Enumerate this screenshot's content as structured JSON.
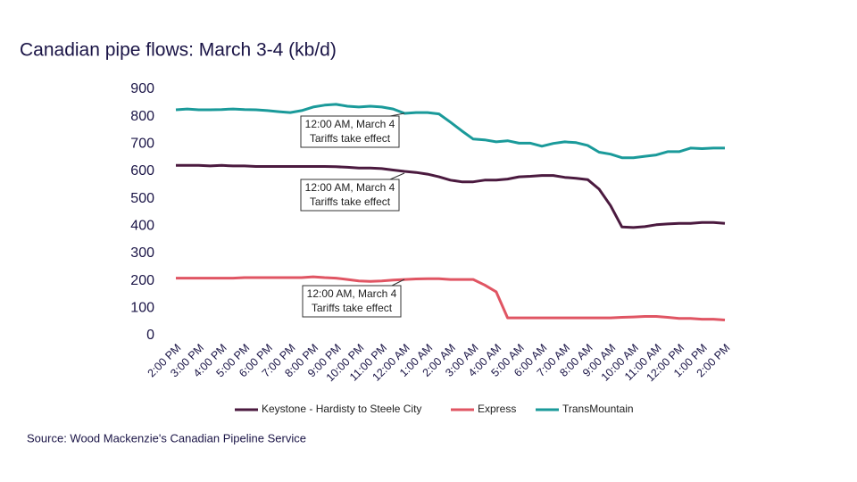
{
  "chart_data": {
    "type": "line",
    "title": "Canadian pipe flows: March 3-4 (kb/d)",
    "source": "Source: Wood Mackenzie's Canadian Pipeline Service",
    "categories": [
      "2:00 PM",
      null,
      "3:00 PM",
      null,
      "4:00 PM",
      null,
      "5:00 PM",
      null,
      "6:00 PM",
      null,
      "7:00 PM",
      null,
      "8:00 PM",
      null,
      "9:00 PM",
      null,
      "10:00 PM",
      null,
      "11:00 PM",
      null,
      "12:00 AM",
      null,
      "1:00 AM",
      null,
      "2:00 AM",
      null,
      "3:00 AM",
      null,
      "4:00 AM",
      null,
      "5:00 AM",
      null,
      "6:00 AM",
      null,
      "7:00 AM",
      null,
      "8:00 AM",
      null,
      "9:00 AM",
      null,
      "10:00 AM",
      null,
      "11:00 AM",
      null,
      "12:00 PM",
      null,
      "1:00 PM",
      null,
      "2:00 PM"
    ],
    "series": [
      {
        "name": "Keystone - Hardisty to Steele City",
        "color": "#4b1a3f",
        "values": [
          622,
          622,
          622,
          620,
          622,
          620,
          620,
          618,
          618,
          618,
          618,
          618,
          618,
          618,
          617,
          615,
          612,
          612,
          610,
          605,
          600,
          596,
          590,
          580,
          568,
          562,
          562,
          568,
          568,
          572,
          580,
          582,
          585,
          585,
          578,
          575,
          570,
          535,
          475,
          397,
          395,
          398,
          405,
          408,
          410,
          410,
          413,
          413,
          410
        ]
      },
      {
        "name": "Express",
        "color": "#e05563",
        "values": [
          210,
          210,
          210,
          210,
          210,
          210,
          212,
          212,
          212,
          212,
          212,
          212,
          215,
          212,
          210,
          205,
          200,
          198,
          200,
          203,
          205,
          207,
          208,
          208,
          205,
          205,
          205,
          185,
          160,
          65,
          65,
          65,
          65,
          65,
          65,
          65,
          65,
          65,
          65,
          67,
          68,
          70,
          70,
          67,
          63,
          63,
          60,
          60,
          57
        ]
      },
      {
        "name": "TransMountain",
        "color": "#1a9a9a",
        "values": [
          825,
          828,
          825,
          825,
          826,
          828,
          826,
          825,
          822,
          818,
          815,
          822,
          835,
          842,
          845,
          838,
          835,
          838,
          835,
          828,
          812,
          815,
          815,
          810,
          780,
          748,
          718,
          715,
          708,
          712,
          703,
          703,
          692,
          702,
          708,
          705,
          695,
          670,
          663,
          650,
          650,
          655,
          660,
          672,
          672,
          685,
          683,
          685,
          685
        ]
      }
    ],
    "annotations": [
      {
        "lines": [
          "12:00 AM, March 4",
          "Tariffs take effect"
        ]
      },
      {
        "lines": [
          "12:00 AM, March 4",
          "Tariffs take effect"
        ]
      },
      {
        "lines": [
          "12:00 AM, March 4",
          "Tariffs take effect"
        ]
      }
    ],
    "ylim": [
      0,
      900
    ],
    "yticks": [
      0,
      100,
      200,
      300,
      400,
      500,
      600,
      700,
      800,
      900
    ],
    "grid": false,
    "legend": "bottom"
  }
}
